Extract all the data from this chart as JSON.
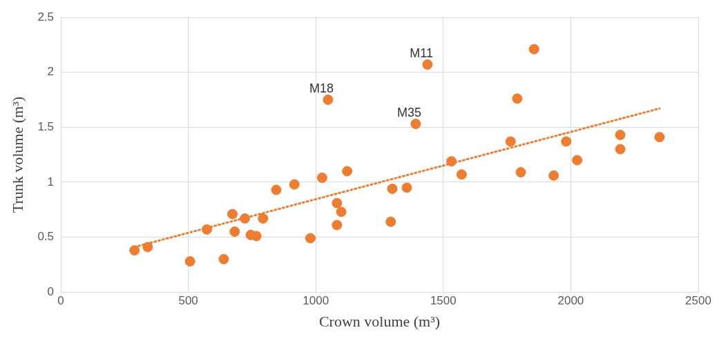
{
  "chart_data": {
    "type": "scatter",
    "xlabel": "Crown volume (m³)",
    "ylabel": "Trunk volume (m³)",
    "xlim": [
      0,
      2500
    ],
    "xticks": [
      0,
      500,
      1000,
      1500,
      2000,
      2500
    ],
    "ylim": [
      0,
      2.5
    ],
    "yticks": [
      0,
      0.5,
      1,
      1.5,
      2,
      2.5
    ],
    "grid": true,
    "legend": false,
    "marker": "circle",
    "series": [
      {
        "type": "scatter",
        "color": "#ed7d31",
        "x": [
          289,
          341,
          507,
          573,
          639,
          673,
          682,
          722,
          745,
          767,
          793,
          845,
          916,
          979,
          1025,
          1048,
          1083,
          1083,
          1100,
          1123,
          1294,
          1300,
          1357,
          1392,
          1438,
          1532,
          1572,
          1764,
          1790,
          1804,
          1856,
          1933,
          1982,
          2025,
          2194,
          2194,
          2348
        ],
        "values": [
          0.38,
          0.41,
          0.28,
          0.57,
          0.3,
          0.71,
          0.55,
          0.67,
          0.52,
          0.51,
          0.67,
          0.93,
          0.98,
          0.49,
          1.04,
          1.75,
          0.81,
          0.61,
          0.73,
          1.1,
          0.64,
          0.94,
          0.95,
          1.53,
          2.07,
          1.19,
          1.07,
          1.37,
          1.76,
          1.09,
          2.21,
          1.06,
          1.37,
          1.2,
          1.43,
          1.3,
          1.41
        ]
      },
      {
        "type": "line",
        "color": "#ed7d31",
        "line_style": "dotted",
        "marker": "none",
        "x": [
          289,
          2348
        ],
        "values": [
          0.41,
          1.67
        ]
      }
    ],
    "annotations": [
      {
        "text": "M11",
        "x": 1438,
        "y": 2.07
      },
      {
        "text": "M18",
        "x": 1048,
        "y": 1.75
      },
      {
        "text": "M35",
        "x": 1392,
        "y": 1.53
      }
    ]
  }
}
